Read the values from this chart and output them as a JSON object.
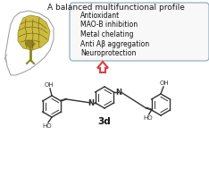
{
  "title": "A balanced multifunctional profile",
  "box_items": [
    "Antioxidant",
    "MAO-B inhibition",
    "Metal chelating",
    "Anti Aβ aggregation",
    "Neuroprotection"
  ],
  "compound_label": "3d",
  "bg_color": "#ffffff",
  "box_edge_color": "#90b0c0",
  "title_color": "#1a1a1a",
  "text_color": "#111111",
  "arrow_color": "#d94040",
  "structure_color": "#333333",
  "brain_fill": "#c8b830",
  "brain_dark": "#7a6010",
  "brain_edge": "#888820",
  "head_color": "#999999",
  "box_bg": "#f8f8f8"
}
